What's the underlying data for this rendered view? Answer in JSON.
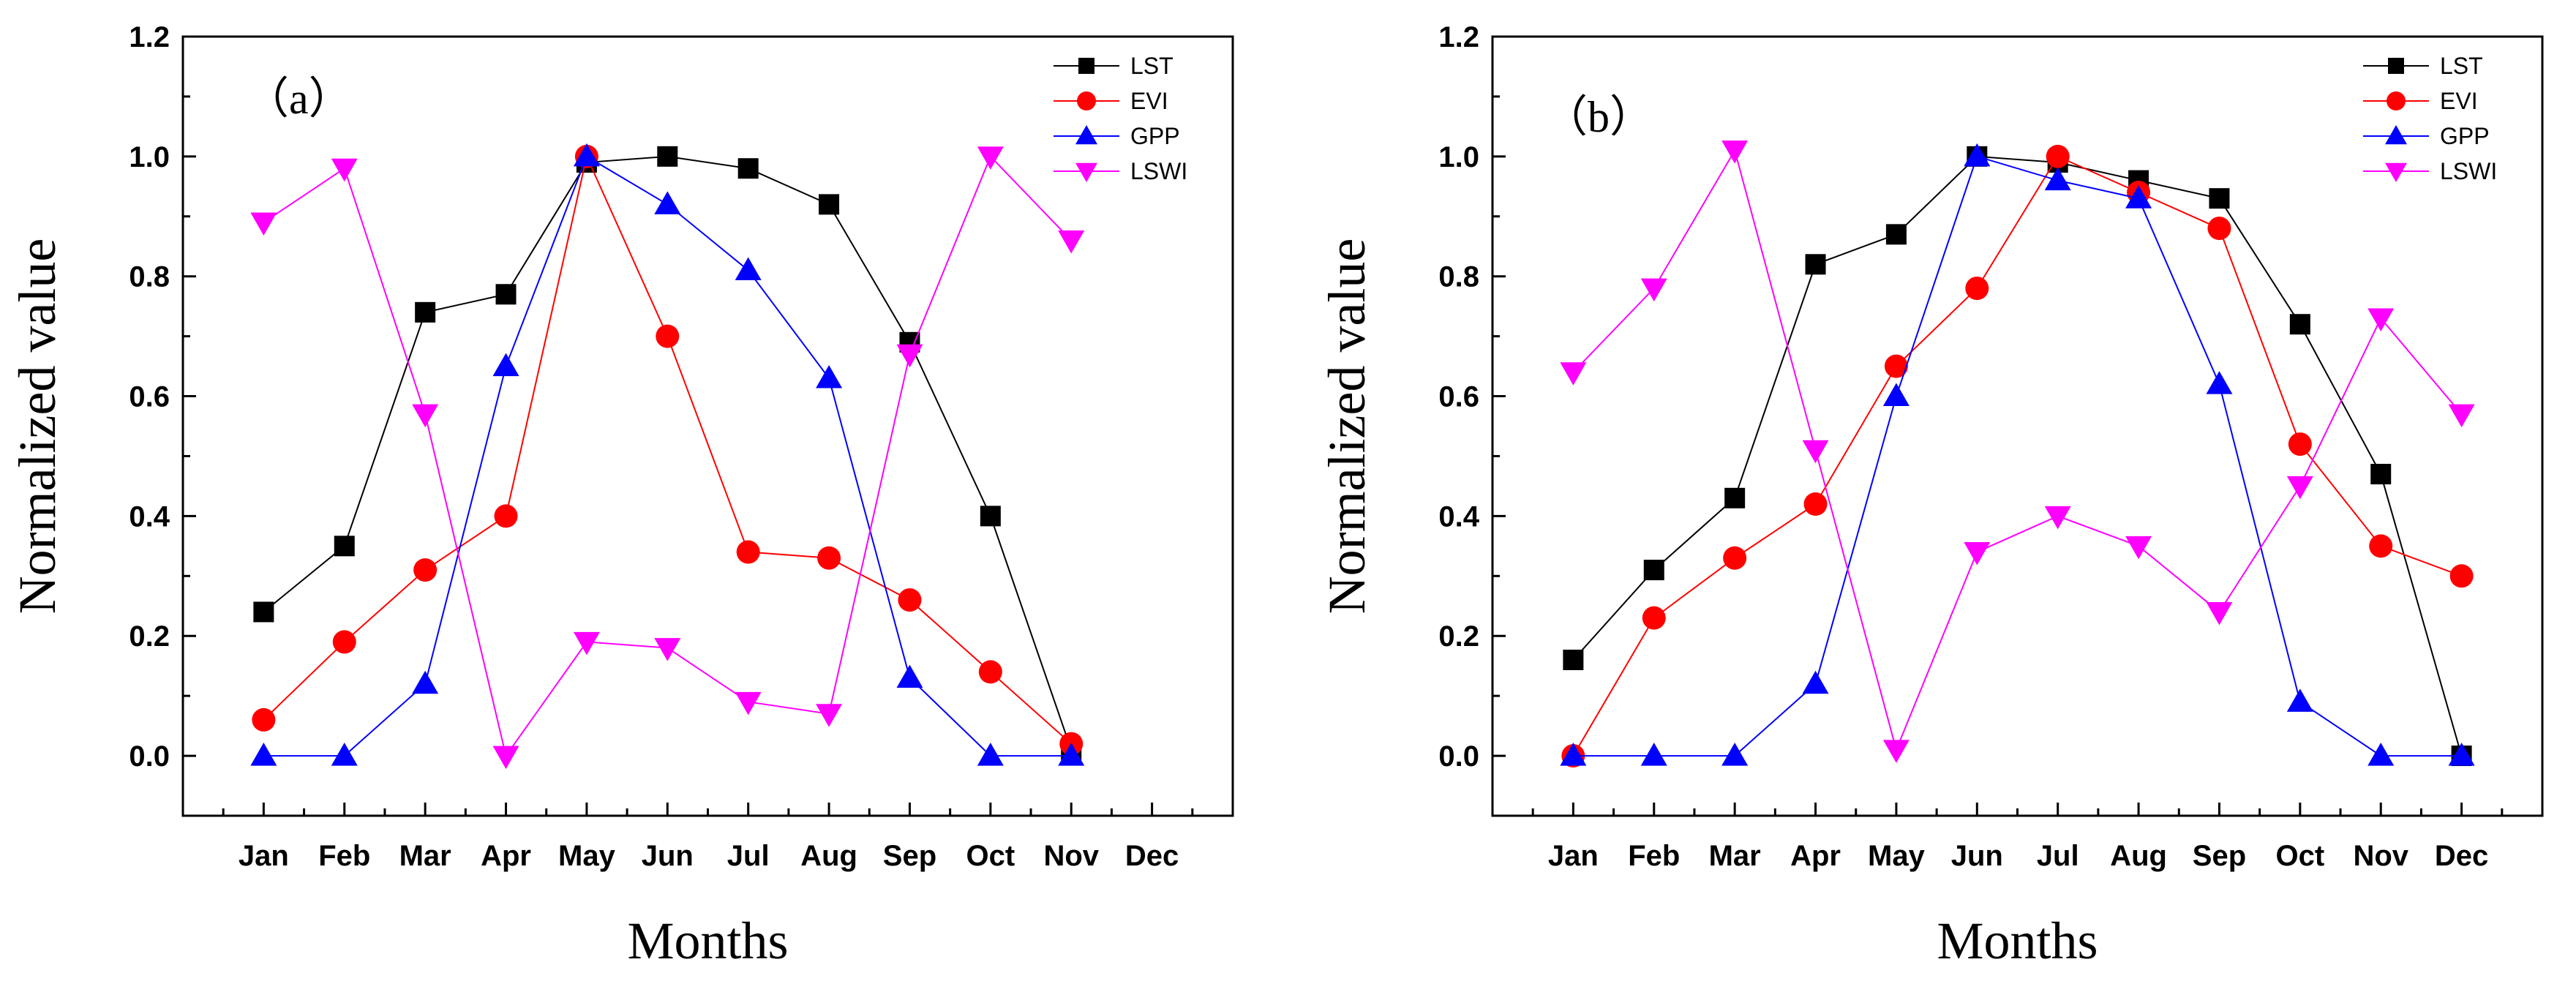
{
  "chart_data": [
    {
      "type": "line",
      "panel_label": "（a）",
      "title": "",
      "xlabel": "Months",
      "ylabel": "Normalized value",
      "categories": [
        "Jan",
        "Feb",
        "Mar",
        "Apr",
        "May",
        "Jun",
        "Jul",
        "Aug",
        "Sep",
        "Oct",
        "Nov",
        "Dec"
      ],
      "ylim": [
        -0.1,
        1.2
      ],
      "yticks": [
        "0.0",
        "0.2",
        "0.4",
        "0.6",
        "0.8",
        "1.0",
        "1.2"
      ],
      "legend_position": "top-right",
      "series": [
        {
          "name": "LST",
          "color": "#000000",
          "marker": "square",
          "values": [
            0.24,
            0.35,
            0.74,
            0.77,
            0.99,
            1.0,
            0.98,
            0.92,
            0.69,
            0.4,
            0.01,
            null
          ]
        },
        {
          "name": "EVI",
          "color": "#ff0000",
          "marker": "circle",
          "values": [
            0.06,
            0.19,
            0.31,
            0.4,
            1.0,
            0.7,
            0.34,
            0.33,
            0.26,
            0.14,
            0.02,
            null
          ]
        },
        {
          "name": "GPP",
          "color": "#0000ff",
          "marker": "triangle-up",
          "values": [
            0.0,
            0.0,
            0.12,
            0.65,
            1.0,
            0.92,
            0.81,
            0.63,
            0.13,
            0.0,
            0.0,
            null
          ]
        },
        {
          "name": "LSWI",
          "color": "#ff00ff",
          "marker": "triangle-down",
          "values": [
            0.89,
            0.98,
            0.57,
            0.0,
            0.19,
            0.18,
            0.09,
            0.07,
            0.67,
            1.0,
            0.86,
            null
          ]
        }
      ]
    },
    {
      "type": "line",
      "panel_label": "（b）",
      "title": "",
      "xlabel": "Months",
      "ylabel": "Normalized value",
      "categories": [
        "Jan",
        "Feb",
        "Mar",
        "Apr",
        "May",
        "Jun",
        "Jul",
        "Aug",
        "Sep",
        "Oct",
        "Nov",
        "Dec"
      ],
      "ylim": [
        -0.1,
        1.2
      ],
      "yticks": [
        "0.0",
        "0.2",
        "0.4",
        "0.6",
        "0.8",
        "1.0",
        "1.2"
      ],
      "legend_position": "top-right",
      "series": [
        {
          "name": "LST",
          "color": "#000000",
          "marker": "square",
          "values": [
            0.16,
            0.31,
            0.43,
            0.82,
            0.87,
            1.0,
            0.99,
            0.96,
            0.93,
            0.72,
            0.47,
            0.0
          ]
        },
        {
          "name": "EVI",
          "color": "#ff0000",
          "marker": "circle",
          "values": [
            0.0,
            0.23,
            0.33,
            0.42,
            0.65,
            0.78,
            1.0,
            0.94,
            0.88,
            0.52,
            0.35,
            0.3
          ]
        },
        {
          "name": "GPP",
          "color": "#0000ff",
          "marker": "triangle-up",
          "values": [
            0.0,
            0.0,
            0.0,
            0.12,
            0.6,
            1.0,
            0.96,
            0.93,
            0.62,
            0.09,
            0.0,
            0.0
          ]
        },
        {
          "name": "LSWI",
          "color": "#ff00ff",
          "marker": "triangle-down",
          "values": [
            0.64,
            0.78,
            1.01,
            0.51,
            0.01,
            0.34,
            0.4,
            0.35,
            0.24,
            0.45,
            0.73,
            0.57
          ]
        }
      ]
    }
  ]
}
